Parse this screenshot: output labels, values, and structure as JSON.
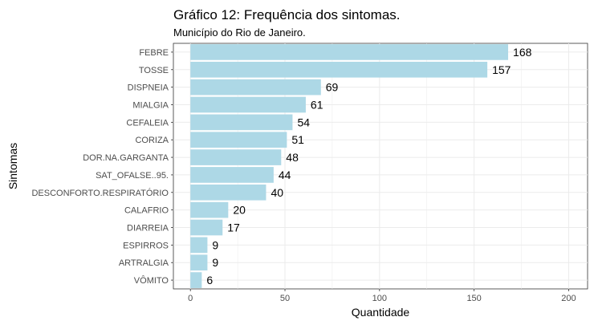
{
  "chart_data": {
    "type": "bar",
    "orientation": "horizontal",
    "title": "Gráfico 12: Frequência dos sintomas.",
    "subtitle": "Município do Rio de Janeiro.",
    "xlabel": "Quantidade",
    "ylabel": "Sintomas",
    "categories": [
      "FEBRE",
      "TOSSE",
      "DISPNEIA",
      "MIALGIA",
      "CEFALEIA",
      "CORIZA",
      "DOR.NA.GARGANTA",
      "SAT_OFALSE..95.",
      "DESCONFORTO.RESPIRATÓRIO",
      "CALAFRIO",
      "DIARREIA",
      "ESPIRROS",
      "ARTRALGIA",
      "VÔMITO"
    ],
    "values": [
      168,
      157,
      69,
      61,
      54,
      51,
      48,
      44,
      40,
      20,
      17,
      9,
      9,
      6
    ],
    "data_labels": [
      "168",
      "157",
      "69",
      "61",
      "54",
      "51",
      "48",
      "44",
      "40",
      "20",
      "17",
      "9",
      "9",
      "6"
    ],
    "xlim": [
      -9,
      210
    ],
    "xticks": [
      0,
      50,
      100,
      150,
      200
    ],
    "xtick_labels": [
      "0",
      "50",
      "100",
      "150",
      "200"
    ],
    "grid": true,
    "bar_color": "#add8e6",
    "grid_color": "#ebebeb"
  }
}
